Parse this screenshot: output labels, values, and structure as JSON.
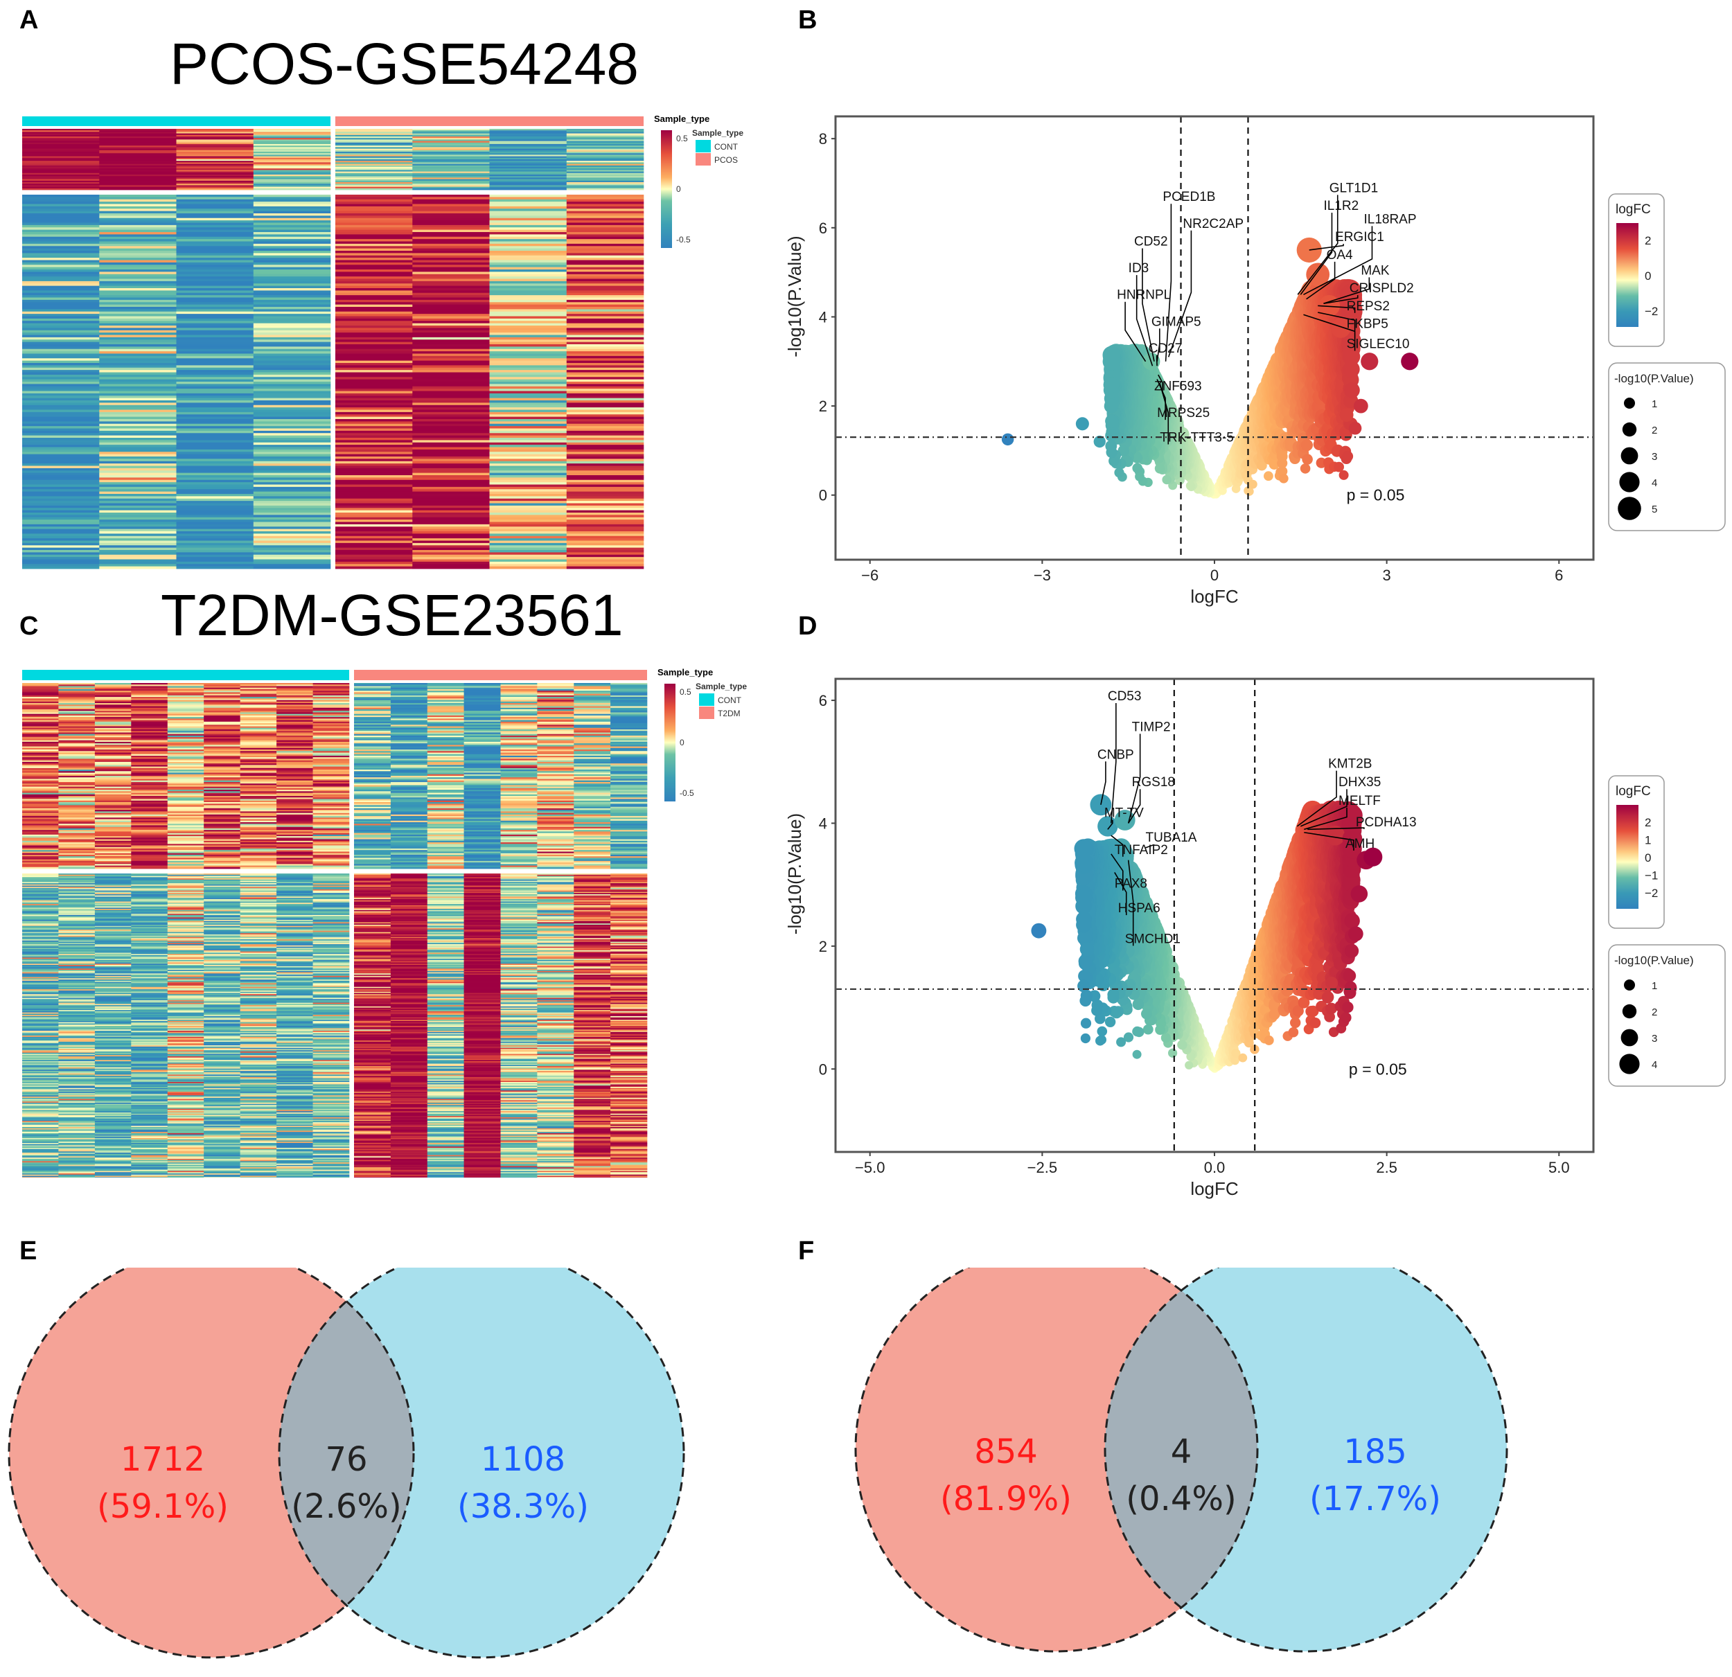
{
  "figure": {
    "panel_labels": [
      "A",
      "B",
      "C",
      "D",
      "E",
      "F"
    ]
  },
  "chart_data": [
    {
      "id": "A",
      "type": "heatmap",
      "title": "PCOS-GSE54248",
      "groups": [
        {
          "name": "CONT",
          "color": "#00D9E0",
          "n_samples": 4
        },
        {
          "name": "PCOS",
          "color": "#F9877E",
          "n_samples": 4
        }
      ],
      "row_clusters": [
        {
          "name": "higher-in-CONT",
          "pattern": {
            "CONT": [
              0.9,
              0.95,
              0.7,
              0.0
            ],
            "PCOS": [
              -0.3,
              -0.2,
              -0.7,
              -0.3
            ]
          },
          "rows": 40
        },
        {
          "name": "higher-in-PCOS",
          "pattern": {
            "CONT": [
              -0.7,
              -0.35,
              -0.75,
              -0.45
            ],
            "PCOS": [
              0.75,
              0.8,
              0.05,
              0.55
            ]
          },
          "rows": 160
        }
      ],
      "legend_title": "Sample_type",
      "colorbar": {
        "title": "Sample_type",
        "ticks": [
          "0.5",
          "0",
          "-0.5"
        ],
        "range": [
          -0.5,
          0.5
        ]
      },
      "annotation_legend": {
        "title": "Sample_type",
        "items": [
          {
            "label": "CONT",
            "color": "#00D9E0"
          },
          {
            "label": "PCOS",
            "color": "#F9877E"
          }
        ]
      }
    },
    {
      "id": "B",
      "type": "scatter",
      "subtype": "volcano",
      "xlabel": "logFC",
      "ylabel": "-log10(P.Value)",
      "xlim": [
        -6.6,
        6.6
      ],
      "ylim": [
        -1.45,
        8.5
      ],
      "xticks": [
        -6,
        -3,
        0,
        3,
        6
      ],
      "yticks": [
        0,
        2,
        4,
        6,
        8
      ],
      "xtick_labels": [
        "−6",
        "−3",
        "0",
        "3",
        "6"
      ],
      "ytick_labels": [
        "0",
        "2",
        "4",
        "6",
        "8"
      ],
      "vlines": [
        -0.585,
        0.585
      ],
      "hline": 1.3,
      "annotation": "p = 0.05",
      "annotation_pos": {
        "x": 2.3,
        "y": 0
      },
      "grid": false,
      "highlight_points": [
        {
          "x": 1.65,
          "y": 5.5
        },
        {
          "x": 1.8,
          "y": 4.95
        },
        {
          "x": 2.0,
          "y": 4.25
        },
        {
          "x": 2.2,
          "y": 3.75
        },
        {
          "x": 2.7,
          "y": 3.0
        },
        {
          "x": 3.4,
          "y": 3.0
        },
        {
          "x": 2.55,
          "y": 2.0
        },
        {
          "x": 2.3,
          "y": 1.8
        },
        {
          "x": 2.45,
          "y": 1.5
        },
        {
          "x": -1.1,
          "y": 3.0
        },
        {
          "x": -2.3,
          "y": 1.6
        },
        {
          "x": -2.0,
          "y": 1.2
        },
        {
          "x": -1.8,
          "y": 1.1
        },
        {
          "x": -3.6,
          "y": 1.25
        }
      ],
      "cloud": {
        "left_xmin": -1.8,
        "right_xmax": 2.4,
        "left_ymax": 3.2,
        "right_ymax": 4.6
      },
      "labels": [
        {
          "text": "PCED1B",
          "x": -0.9,
          "y": 6.6,
          "px": -0.85,
          "py": 3.0
        },
        {
          "text": "NR2C2AP",
          "x": -0.55,
          "y": 6.0,
          "px": -0.8,
          "py": 3.1
        },
        {
          "text": "CD52",
          "x": -1.4,
          "y": 5.6,
          "px": -1.05,
          "py": 3.0
        },
        {
          "text": "ID3",
          "x": -1.5,
          "y": 5.0,
          "px": -1.08,
          "py": 2.9
        },
        {
          "text": "HNRNPL",
          "x": -1.7,
          "y": 4.4,
          "px": -1.2,
          "py": 3.0
        },
        {
          "text": "GIMAP5",
          "x": -1.1,
          "y": 3.8,
          "px": -1.0,
          "py": 3.0
        },
        {
          "text": "CD27",
          "x": -1.15,
          "y": 3.2,
          "px": -1.0,
          "py": 2.9
        },
        {
          "text": "ZNF593",
          "x": -1.05,
          "y": 2.35,
          "px": -0.98,
          "py": 2.7
        },
        {
          "text": "MRPS25",
          "x": -1.0,
          "y": 1.75,
          "px": -1.0,
          "py": 2.6
        },
        {
          "text": "TRK-TTT3-5",
          "x": -0.95,
          "y": 1.2,
          "px": -0.95,
          "py": 2.5
        },
        {
          "text": "GLT1D1",
          "x": 2.0,
          "y": 6.8,
          "px": 1.45,
          "py": 4.5
        },
        {
          "text": "IL1R2",
          "x": 1.9,
          "y": 6.4,
          "px": 1.5,
          "py": 4.5
        },
        {
          "text": "IL18RAP",
          "x": 2.6,
          "y": 6.1,
          "px": 1.55,
          "py": 4.5
        },
        {
          "text": "ERGIC1",
          "x": 2.1,
          "y": 5.7,
          "px": 1.65,
          "py": 5.5
        },
        {
          "text": "OA4",
          "x": 1.95,
          "y": 5.3,
          "px": 1.6,
          "py": 4.4
        },
        {
          "text": "MAK",
          "x": 2.55,
          "y": 4.95,
          "px": 1.9,
          "py": 4.3
        },
        {
          "text": "CRISPLD2",
          "x": 2.35,
          "y": 4.55,
          "px": 1.9,
          "py": 4.3
        },
        {
          "text": "REPS2",
          "x": 2.3,
          "y": 4.15,
          "px": 1.8,
          "py": 4.25
        },
        {
          "text": "FKBP5",
          "x": 2.3,
          "y": 3.75,
          "px": 1.8,
          "py": 4.1
        },
        {
          "text": "SIGLEC10",
          "x": 2.3,
          "y": 3.3,
          "px": 1.55,
          "py": 4.05
        }
      ],
      "legends": [
        {
          "title": "logFC",
          "type": "colorbar",
          "ticks": [
            "2",
            "0",
            "−2"
          ],
          "range": [
            -3.6,
            3.4
          ]
        },
        {
          "title": "-log10(P.Value)",
          "type": "size",
          "values": [
            "1",
            "2",
            "3",
            "4",
            "5"
          ]
        }
      ]
    },
    {
      "id": "C",
      "type": "heatmap",
      "title": "T2DM-GSE23561",
      "groups": [
        {
          "name": "CONT",
          "color": "#00D9E0",
          "n_samples": 9
        },
        {
          "name": "T2DM",
          "color": "#F9877E",
          "n_samples": 8
        }
      ],
      "row_clusters": [
        {
          "name": "higher-in-CONT",
          "pattern": {
            "CONT": [
              0.5,
              0.3,
              0.4,
              0.7,
              0.1,
              0.5,
              0.4,
              0.55,
              0.3
            ],
            "T2DM": [
              -0.3,
              -0.6,
              -0.1,
              -0.75,
              0.0,
              0.15,
              -0.1,
              -0.45
            ]
          },
          "rows": 120
        },
        {
          "name": "higher-in-T2DM",
          "pattern": {
            "CONT": [
              -0.35,
              -0.3,
              -0.4,
              -0.45,
              -0.05,
              -0.35,
              -0.2,
              -0.45,
              -0.3
            ],
            "T2DM": [
              0.75,
              0.85,
              -0.2,
              0.85,
              -0.1,
              -0.05,
              0.6,
              0.55
            ]
          },
          "rows": 250
        }
      ],
      "colorbar": {
        "title": "Sample_type",
        "ticks": [
          "0.5",
          "0",
          "-0.5"
        ],
        "range": [
          -0.5,
          0.5
        ]
      },
      "annotation_legend": {
        "title": "Sample_type",
        "items": [
          {
            "label": "CONT",
            "color": "#00D9E0"
          },
          {
            "label": "T2DM",
            "color": "#F9877E"
          }
        ]
      }
    },
    {
      "id": "D",
      "type": "scatter",
      "subtype": "volcano",
      "xlabel": "logFC",
      "ylabel": "-log10(P.Value)",
      "xlim": [
        -5.5,
        5.5
      ],
      "ylim": [
        -1.35,
        6.35
      ],
      "xticks": [
        -5,
        -2.5,
        0,
        2.5,
        5
      ],
      "yticks": [
        0,
        2,
        4,
        6
      ],
      "xtick_labels": [
        "−5.0",
        "−2.5",
        "0.0",
        "2.5",
        "5.0"
      ],
      "ytick_labels": [
        "0",
        "2",
        "4",
        "6"
      ],
      "vlines": [
        -0.585,
        0.585
      ],
      "hline": 1.3,
      "annotation": "p = 0.05",
      "annotation_pos": {
        "x": 1.95,
        "y": 0
      },
      "grid": false,
      "highlight_points": [
        {
          "x": -2.55,
          "y": 2.25
        },
        {
          "x": -1.9,
          "y": 2.65
        },
        {
          "x": -1.65,
          "y": 4.3
        },
        {
          "x": -1.55,
          "y": 3.95
        },
        {
          "x": -1.3,
          "y": 4.05
        },
        {
          "x": -1.85,
          "y": 1.95
        },
        {
          "x": -1.9,
          "y": 1.35
        },
        {
          "x": 2.2,
          "y": 3.4
        },
        {
          "x": 2.3,
          "y": 3.45
        },
        {
          "x": 2.1,
          "y": 2.85
        },
        {
          "x": 2.05,
          "y": 2.2
        },
        {
          "x": 1.75,
          "y": 3.8
        },
        {
          "x": 2.0,
          "y": 3.75
        },
        {
          "x": 1.7,
          "y": 1.4
        }
      ],
      "cloud": {
        "left_xmin": -1.9,
        "right_xmax": 2.0,
        "left_ymax": 3.6,
        "right_ymax": 4.2
      },
      "labels": [
        {
          "text": "CD53",
          "x": -1.55,
          "y": 6.0,
          "px": -1.5,
          "py": 4.0
        },
        {
          "text": "TIMP2",
          "x": -1.2,
          "y": 5.5,
          "px": -1.25,
          "py": 4.0
        },
        {
          "text": "CNBP",
          "x": -1.7,
          "y": 5.05,
          "px": -1.65,
          "py": 4.3
        },
        {
          "text": "RGS18",
          "x": -1.2,
          "y": 4.6,
          "px": -1.25,
          "py": 4.0
        },
        {
          "text": "MT-TV",
          "x": -1.6,
          "y": 4.1,
          "px": -1.55,
          "py": 3.9
        },
        {
          "text": "TUBA1A",
          "x": -1.0,
          "y": 3.7,
          "px": -1.0,
          "py": 3.6
        },
        {
          "text": "TNFAIP2",
          "x": -1.45,
          "y": 3.5,
          "px": -1.5,
          "py": 3.8
        },
        {
          "text": "PAX8",
          "x": -1.45,
          "y": 2.95,
          "px": -1.5,
          "py": 3.5
        },
        {
          "text": "HSPA6",
          "x": -1.4,
          "y": 2.55,
          "px": -1.45,
          "py": 3.2
        },
        {
          "text": "SMCHD1",
          "x": -1.3,
          "y": 2.05,
          "px": -1.25,
          "py": 3.4
        },
        {
          "text": "KMT2B",
          "x": 1.65,
          "y": 4.9,
          "px": 1.2,
          "py": 3.95
        },
        {
          "text": "DHX35",
          "x": 1.8,
          "y": 4.6,
          "px": 1.25,
          "py": 3.95
        },
        {
          "text": "MELTF",
          "x": 1.8,
          "y": 4.3,
          "px": 1.3,
          "py": 3.9
        },
        {
          "text": "PCDHA13",
          "x": 2.05,
          "y": 3.95,
          "px": 1.35,
          "py": 3.9
        },
        {
          "text": "AMH",
          "x": 1.9,
          "y": 3.6,
          "px": 1.3,
          "py": 3.85
        }
      ],
      "legends": [
        {
          "title": "logFC",
          "type": "colorbar",
          "ticks": [
            "2",
            "1",
            "0",
            "−1",
            "−2"
          ],
          "range": [
            -2.6,
            2.3
          ]
        },
        {
          "title": "-log10(P.Value)",
          "type": "size",
          "values": [
            "1",
            "2",
            "3",
            "4"
          ]
        }
      ]
    },
    {
      "id": "E",
      "type": "venn",
      "sets": [
        {
          "name": "left",
          "color": "#F5A397",
          "only_count": "1712",
          "only_pct": "(59.1%)",
          "text_color": "#FF1A1A"
        },
        {
          "name": "right",
          "color": "#A8E0ED",
          "only_count": "1108",
          "only_pct": "(38.3%)",
          "text_color": "#1A5CFF"
        }
      ],
      "intersection": {
        "count": "76",
        "pct": "(2.6%)",
        "color": "#A3B0B9",
        "text_color": "#222222"
      }
    },
    {
      "id": "F",
      "type": "venn",
      "sets": [
        {
          "name": "left",
          "color": "#F5A397",
          "only_count": "854",
          "only_pct": "(81.9%)",
          "text_color": "#FF1A1A"
        },
        {
          "name": "right",
          "color": "#A8E0ED",
          "only_count": "185",
          "only_pct": "(17.7%)",
          "text_color": "#1A5CFF"
        }
      ],
      "intersection": {
        "count": "4",
        "pct": "(0.4%)",
        "color": "#A3B0B9",
        "text_color": "#222222"
      }
    }
  ]
}
